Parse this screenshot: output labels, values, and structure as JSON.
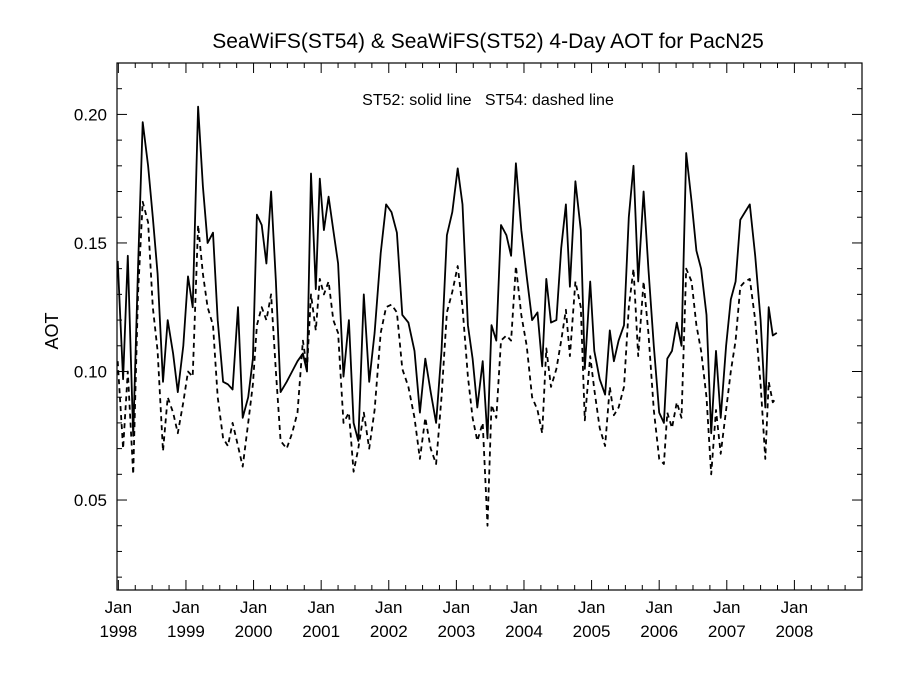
{
  "chart_data": {
    "type": "line",
    "title": "SeaWiFS(ST54) & SeaWiFS(ST52) 4-Day AOT for PacN25",
    "ylabel": "AOT",
    "annotation": "ST52: solid line   ST54: dashed line",
    "ylim": [
      0.015,
      0.22
    ],
    "xlim": [
      1997.98,
      2009.0
    ],
    "yticks": [
      {
        "value": 0.05,
        "label": "0.05"
      },
      {
        "value": 0.1,
        "label": "0.10"
      },
      {
        "value": 0.15,
        "label": "0.15"
      },
      {
        "value": 0.2,
        "label": "0.20"
      }
    ],
    "xticks": [
      {
        "value": 1998.0,
        "month": "Jan",
        "year": "1998"
      },
      {
        "value": 1999.0,
        "month": "Jan",
        "year": "1999"
      },
      {
        "value": 2000.0,
        "month": "Jan",
        "year": "2000"
      },
      {
        "value": 2001.0,
        "month": "Jan",
        "year": "2001"
      },
      {
        "value": 2002.0,
        "month": "Jan",
        "year": "2002"
      },
      {
        "value": 2003.0,
        "month": "Jan",
        "year": "2003"
      },
      {
        "value": 2004.0,
        "month": "Jan",
        "year": "2004"
      },
      {
        "value": 2005.0,
        "month": "Jan",
        "year": "2005"
      },
      {
        "value": 2006.0,
        "month": "Jan",
        "year": "2006"
      },
      {
        "value": 2007.0,
        "month": "Jan",
        "year": "2007"
      },
      {
        "value": 2008.0,
        "month": "Jan",
        "year": "2008"
      }
    ],
    "series": [
      {
        "style": "solid",
        "points": [
          [
            1997.99,
            0.143
          ],
          [
            1998.07,
            0.097
          ],
          [
            1998.14,
            0.145
          ],
          [
            1998.22,
            0.075
          ],
          [
            1998.29,
            0.14
          ],
          [
            1998.36,
            0.197
          ],
          [
            1998.44,
            0.18
          ],
          [
            1998.51,
            0.16
          ],
          [
            1998.58,
            0.138
          ],
          [
            1998.66,
            0.096
          ],
          [
            1998.73,
            0.12
          ],
          [
            1998.81,
            0.107
          ],
          [
            1998.88,
            0.092
          ],
          [
            1998.96,
            0.11
          ],
          [
            1999.03,
            0.137
          ],
          [
            1999.1,
            0.125
          ],
          [
            1999.18,
            0.203
          ],
          [
            1999.25,
            0.172
          ],
          [
            1999.32,
            0.15
          ],
          [
            1999.4,
            0.154
          ],
          [
            1999.47,
            0.12
          ],
          [
            1999.55,
            0.096
          ],
          [
            1999.62,
            0.095
          ],
          [
            1999.69,
            0.093
          ],
          [
            1999.77,
            0.125
          ],
          [
            1999.84,
            0.082
          ],
          [
            1999.92,
            0.09
          ],
          [
            1999.99,
            0.105
          ],
          [
            2000.05,
            0.161
          ],
          [
            2000.12,
            0.157
          ],
          [
            2000.19,
            0.142
          ],
          [
            2000.26,
            0.17
          ],
          [
            2000.33,
            0.135
          ],
          [
            2000.4,
            0.092
          ],
          [
            2000.49,
            0.096
          ],
          [
            2000.57,
            0.1
          ],
          [
            2000.65,
            0.104
          ],
          [
            2000.73,
            0.107
          ],
          [
            2000.79,
            0.1
          ],
          [
            2000.85,
            0.177
          ],
          [
            2000.92,
            0.132
          ],
          [
            2000.98,
            0.175
          ],
          [
            2001.04,
            0.155
          ],
          [
            2001.11,
            0.168
          ],
          [
            2001.18,
            0.155
          ],
          [
            2001.25,
            0.142
          ],
          [
            2001.33,
            0.098
          ],
          [
            2001.41,
            0.12
          ],
          [
            2001.48,
            0.08
          ],
          [
            2001.55,
            0.073
          ],
          [
            2001.63,
            0.13
          ],
          [
            2001.71,
            0.096
          ],
          [
            2001.79,
            0.115
          ],
          [
            2001.88,
            0.146
          ],
          [
            2001.96,
            0.165
          ],
          [
            2002.04,
            0.162
          ],
          [
            2002.12,
            0.154
          ],
          [
            2002.2,
            0.122
          ],
          [
            2002.29,
            0.119
          ],
          [
            2002.38,
            0.108
          ],
          [
            2002.46,
            0.084
          ],
          [
            2002.54,
            0.105
          ],
          [
            2002.62,
            0.092
          ],
          [
            2002.7,
            0.08
          ],
          [
            2002.78,
            0.108
          ],
          [
            2002.86,
            0.153
          ],
          [
            2002.94,
            0.162
          ],
          [
            2003.02,
            0.179
          ],
          [
            2003.09,
            0.165
          ],
          [
            2003.17,
            0.118
          ],
          [
            2003.24,
            0.105
          ],
          [
            2003.31,
            0.086
          ],
          [
            2003.39,
            0.104
          ],
          [
            2003.46,
            0.074
          ],
          [
            2003.52,
            0.118
          ],
          [
            2003.59,
            0.112
          ],
          [
            2003.66,
            0.157
          ],
          [
            2003.74,
            0.153
          ],
          [
            2003.81,
            0.145
          ],
          [
            2003.88,
            0.181
          ],
          [
            2003.96,
            0.155
          ],
          [
            2004.04,
            0.137
          ],
          [
            2004.12,
            0.12
          ],
          [
            2004.2,
            0.123
          ],
          [
            2004.27,
            0.102
          ],
          [
            2004.33,
            0.136
          ],
          [
            2004.4,
            0.119
          ],
          [
            2004.48,
            0.12
          ],
          [
            2004.55,
            0.148
          ],
          [
            2004.62,
            0.165
          ],
          [
            2004.68,
            0.133
          ],
          [
            2004.76,
            0.174
          ],
          [
            2004.84,
            0.155
          ],
          [
            2004.9,
            0.101
          ],
          [
            2004.98,
            0.135
          ],
          [
            2005.04,
            0.108
          ],
          [
            2005.12,
            0.097
          ],
          [
            2005.2,
            0.091
          ],
          [
            2005.27,
            0.116
          ],
          [
            2005.33,
            0.104
          ],
          [
            2005.4,
            0.112
          ],
          [
            2005.48,
            0.118
          ],
          [
            2005.55,
            0.16
          ],
          [
            2005.62,
            0.18
          ],
          [
            2005.69,
            0.135
          ],
          [
            2005.77,
            0.17
          ],
          [
            2005.84,
            0.14
          ],
          [
            2005.92,
            0.11
          ],
          [
            2006.0,
            0.084
          ],
          [
            2006.07,
            0.08
          ],
          [
            2006.12,
            0.105
          ],
          [
            2006.19,
            0.108
          ],
          [
            2006.26,
            0.119
          ],
          [
            2006.33,
            0.11
          ],
          [
            2006.4,
            0.185
          ],
          [
            2006.48,
            0.166
          ],
          [
            2006.55,
            0.147
          ],
          [
            2006.62,
            0.14
          ],
          [
            2006.7,
            0.122
          ],
          [
            2006.77,
            0.076
          ],
          [
            2006.84,
            0.108
          ],
          [
            2006.91,
            0.082
          ],
          [
            2006.99,
            0.11
          ],
          [
            2007.06,
            0.128
          ],
          [
            2007.13,
            0.135
          ],
          [
            2007.2,
            0.159
          ],
          [
            2007.27,
            0.162
          ],
          [
            2007.34,
            0.165
          ],
          [
            2007.42,
            0.145
          ],
          [
            2007.5,
            0.12
          ],
          [
            2007.57,
            0.086
          ],
          [
            2007.62,
            0.125
          ],
          [
            2007.68,
            0.114
          ],
          [
            2007.74,
            0.115
          ]
        ]
      },
      {
        "style": "dashed",
        "points": [
          [
            1997.99,
            0.104
          ],
          [
            1998.07,
            0.07
          ],
          [
            1998.14,
            0.1
          ],
          [
            1998.22,
            0.06
          ],
          [
            1998.29,
            0.13
          ],
          [
            1998.36,
            0.166
          ],
          [
            1998.44,
            0.158
          ],
          [
            1998.51,
            0.125
          ],
          [
            1998.58,
            0.108
          ],
          [
            1998.66,
            0.069
          ],
          [
            1998.73,
            0.09
          ],
          [
            1998.81,
            0.084
          ],
          [
            1998.88,
            0.076
          ],
          [
            1998.96,
            0.088
          ],
          [
            1999.03,
            0.1
          ],
          [
            1999.1,
            0.098
          ],
          [
            1999.18,
            0.157
          ],
          [
            1999.25,
            0.138
          ],
          [
            1999.32,
            0.125
          ],
          [
            1999.4,
            0.118
          ],
          [
            1999.47,
            0.09
          ],
          [
            1999.55,
            0.074
          ],
          [
            1999.62,
            0.071
          ],
          [
            1999.69,
            0.08
          ],
          [
            1999.77,
            0.071
          ],
          [
            1999.84,
            0.063
          ],
          [
            1999.92,
            0.08
          ],
          [
            1999.99,
            0.095
          ],
          [
            2000.05,
            0.118
          ],
          [
            2000.12,
            0.125
          ],
          [
            2000.19,
            0.12
          ],
          [
            2000.26,
            0.13
          ],
          [
            2000.33,
            0.1
          ],
          [
            2000.4,
            0.073
          ],
          [
            2000.49,
            0.07
          ],
          [
            2000.57,
            0.076
          ],
          [
            2000.65,
            0.084
          ],
          [
            2000.73,
            0.112
          ],
          [
            2000.79,
            0.101
          ],
          [
            2000.85,
            0.13
          ],
          [
            2000.92,
            0.116
          ],
          [
            2000.98,
            0.136
          ],
          [
            2001.04,
            0.13
          ],
          [
            2001.11,
            0.135
          ],
          [
            2001.18,
            0.12
          ],
          [
            2001.25,
            0.115
          ],
          [
            2001.33,
            0.08
          ],
          [
            2001.41,
            0.084
          ],
          [
            2001.48,
            0.061
          ],
          [
            2001.55,
            0.07
          ],
          [
            2001.63,
            0.084
          ],
          [
            2001.71,
            0.07
          ],
          [
            2001.79,
            0.085
          ],
          [
            2001.88,
            0.115
          ],
          [
            2001.96,
            0.125
          ],
          [
            2002.04,
            0.126
          ],
          [
            2002.12,
            0.123
          ],
          [
            2002.2,
            0.101
          ],
          [
            2002.29,
            0.094
          ],
          [
            2002.38,
            0.082
          ],
          [
            2002.46,
            0.066
          ],
          [
            2002.54,
            0.082
          ],
          [
            2002.62,
            0.07
          ],
          [
            2002.7,
            0.064
          ],
          [
            2002.78,
            0.09
          ],
          [
            2002.86,
            0.123
          ],
          [
            2002.94,
            0.131
          ],
          [
            2003.02,
            0.141
          ],
          [
            2003.09,
            0.125
          ],
          [
            2003.17,
            0.098
          ],
          [
            2003.24,
            0.082
          ],
          [
            2003.31,
            0.073
          ],
          [
            2003.39,
            0.08
          ],
          [
            2003.46,
            0.04
          ],
          [
            2003.52,
            0.087
          ],
          [
            2003.59,
            0.082
          ],
          [
            2003.66,
            0.112
          ],
          [
            2003.74,
            0.114
          ],
          [
            2003.81,
            0.112
          ],
          [
            2003.88,
            0.141
          ],
          [
            2003.96,
            0.122
          ],
          [
            2004.04,
            0.11
          ],
          [
            2004.12,
            0.09
          ],
          [
            2004.2,
            0.085
          ],
          [
            2004.27,
            0.076
          ],
          [
            2004.33,
            0.109
          ],
          [
            2004.4,
            0.094
          ],
          [
            2004.48,
            0.101
          ],
          [
            2004.55,
            0.112
          ],
          [
            2004.62,
            0.124
          ],
          [
            2004.68,
            0.106
          ],
          [
            2004.76,
            0.135
          ],
          [
            2004.84,
            0.125
          ],
          [
            2004.9,
            0.081
          ],
          [
            2004.98,
            0.106
          ],
          [
            2005.04,
            0.093
          ],
          [
            2005.12,
            0.078
          ],
          [
            2005.2,
            0.071
          ],
          [
            2005.27,
            0.094
          ],
          [
            2005.33,
            0.083
          ],
          [
            2005.4,
            0.086
          ],
          [
            2005.48,
            0.094
          ],
          [
            2005.55,
            0.125
          ],
          [
            2005.62,
            0.14
          ],
          [
            2005.69,
            0.106
          ],
          [
            2005.77,
            0.135
          ],
          [
            2005.84,
            0.115
          ],
          [
            2005.92,
            0.085
          ],
          [
            2006.0,
            0.066
          ],
          [
            2006.07,
            0.064
          ],
          [
            2006.12,
            0.084
          ],
          [
            2006.19,
            0.078
          ],
          [
            2006.26,
            0.088
          ],
          [
            2006.33,
            0.082
          ],
          [
            2006.4,
            0.14
          ],
          [
            2006.48,
            0.135
          ],
          [
            2006.55,
            0.118
          ],
          [
            2006.62,
            0.108
          ],
          [
            2006.7,
            0.09
          ],
          [
            2006.77,
            0.06
          ],
          [
            2006.84,
            0.085
          ],
          [
            2006.91,
            0.068
          ],
          [
            2006.99,
            0.085
          ],
          [
            2007.06,
            0.1
          ],
          [
            2007.13,
            0.112
          ],
          [
            2007.2,
            0.133
          ],
          [
            2007.27,
            0.135
          ],
          [
            2007.34,
            0.136
          ],
          [
            2007.42,
            0.12
          ],
          [
            2007.5,
            0.095
          ],
          [
            2007.57,
            0.066
          ],
          [
            2007.62,
            0.096
          ],
          [
            2007.68,
            0.088
          ],
          [
            2007.74,
            0.09
          ]
        ]
      }
    ]
  }
}
